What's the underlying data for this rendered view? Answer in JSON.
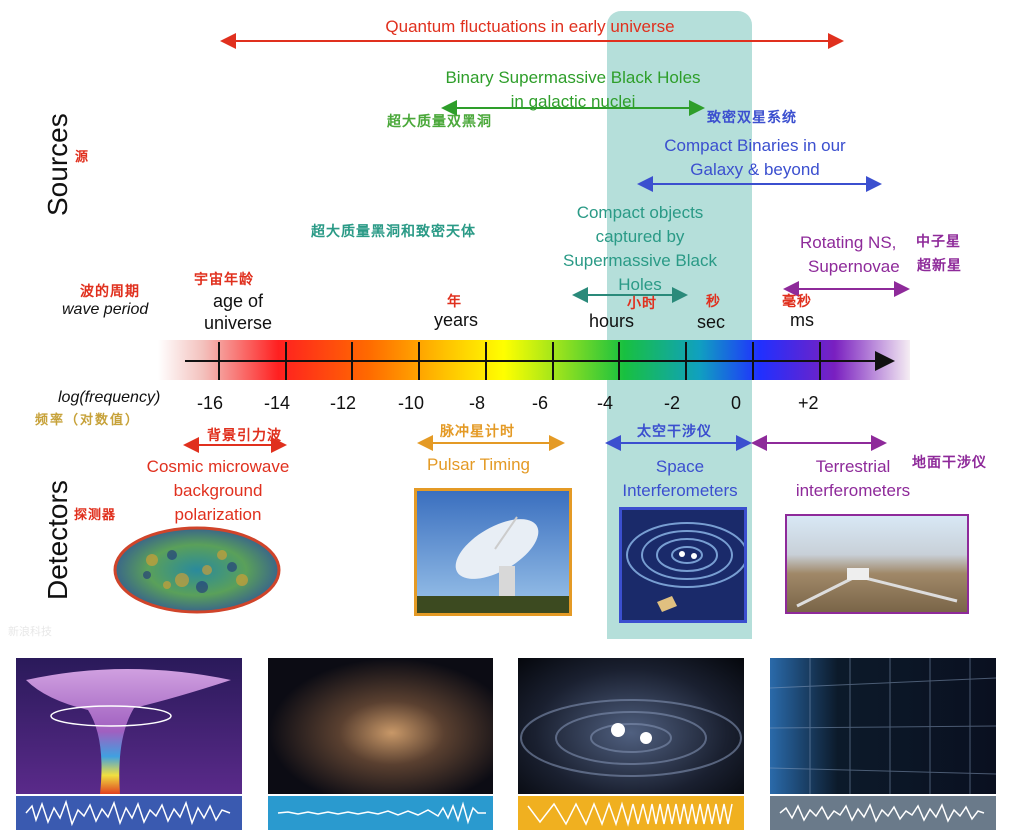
{
  "sources_label": "Sources",
  "sources_cn": "源",
  "detectors_label": "Detectors",
  "detectors_cn": "探测器",
  "wave_period_cn": "波的周期",
  "wave_period_label": "wave period",
  "logfreq_label": "log(frequency)",
  "logfreq_cn": "频率（对数值）",
  "periods": [
    {
      "cn": "宇宙年龄",
      "en": "age of\nuniverse"
    },
    {
      "cn": "年",
      "en": "years"
    },
    {
      "cn": "小时",
      "en": "hours"
    },
    {
      "cn": "秒",
      "en": "sec"
    },
    {
      "cn": "毫秒",
      "en": "ms"
    }
  ],
  "ticks": [
    "-16",
    "-14",
    "-12",
    "-10",
    "-8",
    "-6",
    "-4",
    "-2",
    "0",
    "+2"
  ],
  "sources": {
    "quantum": "Quantum fluctuations in early universe",
    "binary_smbh": "Binary Supermassive Black Holes in galactic nuclei",
    "binary_smbh_cn": "超大质量双黑洞",
    "compact_binaries": "Compact Binaries in our Galaxy & beyond",
    "compact_binaries_cn": "致密双星系统",
    "captured": "Compact objects captured by Supermassive Black Holes",
    "captured_cn": "超大质量黑洞和致密天体",
    "rotating": "Rotating NS,",
    "rotating_cn": "中子星",
    "supernovae": "Supernovae",
    "supernovae_cn": "超新星"
  },
  "detectors": {
    "cmb_cn": "背景引力波",
    "cmb": "Cosmic microwave background polarization",
    "pulsar_cn": "脉冲星计时",
    "pulsar": "Pulsar Timing",
    "space_cn": "太空干涉仪",
    "space": "Space Interferometers",
    "terrestrial": "Terrestrial interferometers",
    "terrestrial_cn": "地面干涉仪"
  },
  "watermark": "新浪科技",
  "colors": {
    "red": "#e0301e",
    "green": "#2e9e2a",
    "blue": "#3b4fcf",
    "teal": "#2a9a86",
    "purple": "#8e2a9a",
    "orange": "#e49a25",
    "highlight": "#9ed6d2"
  }
}
